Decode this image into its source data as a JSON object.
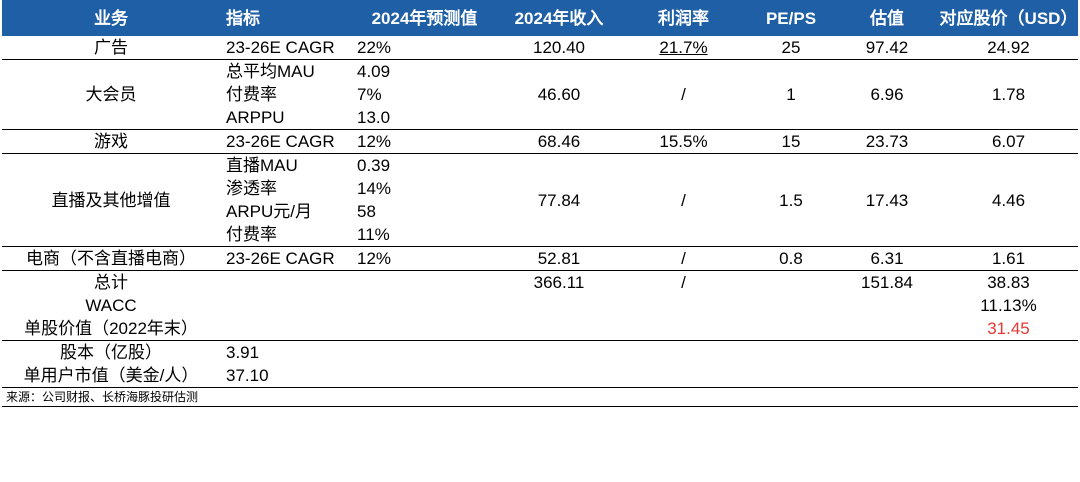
{
  "header": [
    "业务",
    "指标",
    "2024年预测值",
    "2024年收入",
    "利润率",
    "PE/PS",
    "估值",
    "对应股价（USD）"
  ],
  "rows": {
    "ad": {
      "biz": "广告",
      "ind": "23-26E CAGR",
      "pred": "22%",
      "rev": "120.40",
      "margin": "21.7%",
      "pe": "25",
      "val": "97.42",
      "price": "24.92"
    },
    "vip": {
      "biz": "大会员",
      "ind1": "总平均MAU",
      "pred1": "4.09",
      "ind2": "付费率",
      "pred2": "7%",
      "ind3": "ARPPU",
      "pred3": "13.0",
      "rev": "46.60",
      "margin": "/",
      "pe": "1",
      "val": "6.96",
      "price": "1.78"
    },
    "game": {
      "biz": "游戏",
      "ind": "23-26E CAGR",
      "pred": "12%",
      "rev": "68.46",
      "margin": "15.5%",
      "pe": "15",
      "val": "23.73",
      "price": "6.07"
    },
    "live": {
      "biz": "直播及其他增值",
      "ind1": "直播MAU",
      "pred1": "0.39",
      "ind2": "渗透率",
      "pred2": "14%",
      "ind3": "ARPU元/月",
      "pred3": "58",
      "ind4": "付费率",
      "pred4": "11%",
      "rev": "77.84",
      "margin": "/",
      "pe": "1.5",
      "val": "17.43",
      "price": "4.46"
    },
    "ecom": {
      "biz": "电商（不含直播电商）",
      "ind": "23-26E CAGR",
      "pred": "12%",
      "rev": "52.81",
      "margin": "/",
      "pe": "0.8",
      "val": "6.31",
      "price": "1.61"
    },
    "total": {
      "label": "总计",
      "rev": "366.11",
      "margin": "/",
      "val": "151.84",
      "price": "38.83"
    },
    "wacc": {
      "label": "WACC",
      "price": "11.13%"
    },
    "pershare": {
      "label": "单股价值（2022年末）",
      "price": "31.45"
    },
    "shares": {
      "label": "股本（亿股）",
      "value": "3.91"
    },
    "peruser": {
      "label": "单用户市值（美金/人）",
      "value": "37.10"
    }
  },
  "source": "来源：公司财报、长桥海豚投研估测",
  "colors": {
    "header_bg": "#1f5fa6",
    "highlight": "#e53935"
  }
}
